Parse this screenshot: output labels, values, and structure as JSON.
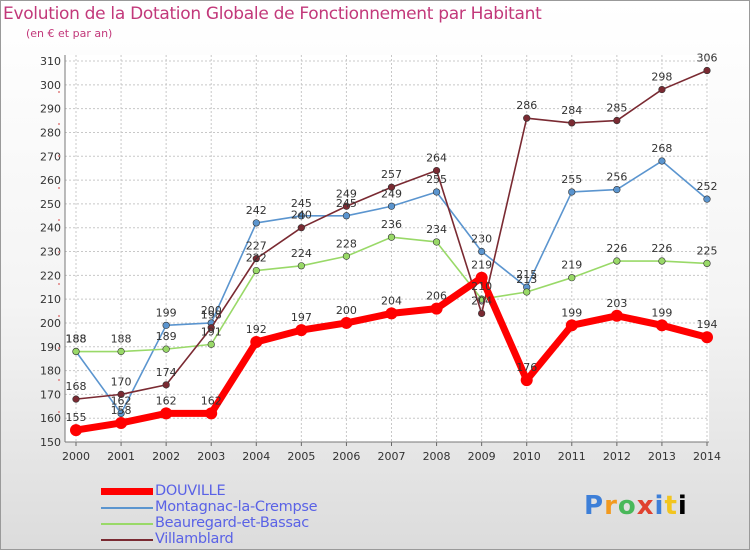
{
  "header": {
    "title": "Evolution de la Dotation Globale de Fonctionnement par Habitant",
    "subtitle": "(en € et par an)"
  },
  "brand": {
    "letters": [
      "P",
      "r",
      "o",
      "x",
      "i",
      "t",
      "i"
    ]
  },
  "chart_data": {
    "type": "line",
    "title": "Evolution de la Dotation Globale de Fonctionnement par Habitant",
    "subtitle": "(en € et par an)",
    "xlabel": "",
    "ylabel": "",
    "ylim": [
      150,
      310
    ],
    "yticks": [
      150,
      160,
      170,
      180,
      190,
      200,
      210,
      220,
      230,
      240,
      250,
      260,
      270,
      280,
      290,
      300,
      310
    ],
    "x": [
      "2000",
      "2001",
      "2002",
      "2003",
      "2004",
      "2005",
      "2006",
      "2007",
      "2008",
      "2009",
      "2010",
      "2011",
      "2012",
      "2013",
      "2014"
    ],
    "grid": true,
    "legend_position": "bottom-left",
    "series": [
      {
        "name": "DOUVILLE",
        "color": "#ff0000",
        "emphasis": true,
        "values": [
          155,
          158,
          162,
          162,
          192,
          197,
          200,
          204,
          206,
          219,
          176,
          199,
          203,
          199,
          194
        ]
      },
      {
        "name": "Montagnac-la-Crempse",
        "color": "#5b95cf",
        "values": [
          188,
          162,
          199,
          200,
          242,
          245,
          245,
          249,
          255,
          230,
          215,
          255,
          256,
          268,
          252
        ]
      },
      {
        "name": "Beauregard-et-Bassac",
        "color": "#99d968",
        "values": [
          188,
          188,
          189,
          191,
          222,
          224,
          228,
          236,
          234,
          210,
          213,
          219,
          226,
          226,
          225
        ]
      },
      {
        "name": "Villamblard",
        "color": "#7a2a32",
        "values": [
          168,
          170,
          174,
          198,
          227,
          240,
          249,
          257,
          264,
          204,
          286,
          284,
          285,
          298,
          306
        ]
      }
    ]
  }
}
